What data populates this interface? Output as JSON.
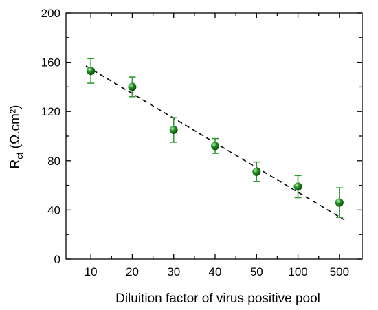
{
  "chart_data": {
    "type": "scatter",
    "categories": [
      "10",
      "20",
      "30",
      "40",
      "50",
      "100",
      "500"
    ],
    "values": [
      153,
      140,
      105,
      92,
      71,
      59,
      46
    ],
    "errors": [
      10,
      8,
      10,
      6,
      8,
      9,
      12
    ],
    "fit_line": {
      "start": 157,
      "end": 32
    },
    "xlabel": "Diluition factor of virus positive pool",
    "ylabel_main": "R",
    "ylabel_sub": "ct",
    "ylabel_unit": " (Ω.cm²)",
    "ylim": [
      0,
      200
    ],
    "yticks": [
      "0",
      "40",
      "80",
      "120",
      "160",
      "200"
    ],
    "minor_y": [
      20,
      60,
      100,
      140,
      180
    ],
    "marker_color": "#1f8f1f",
    "error_color": "#2f9a2f",
    "grid": false,
    "legend": "none"
  }
}
